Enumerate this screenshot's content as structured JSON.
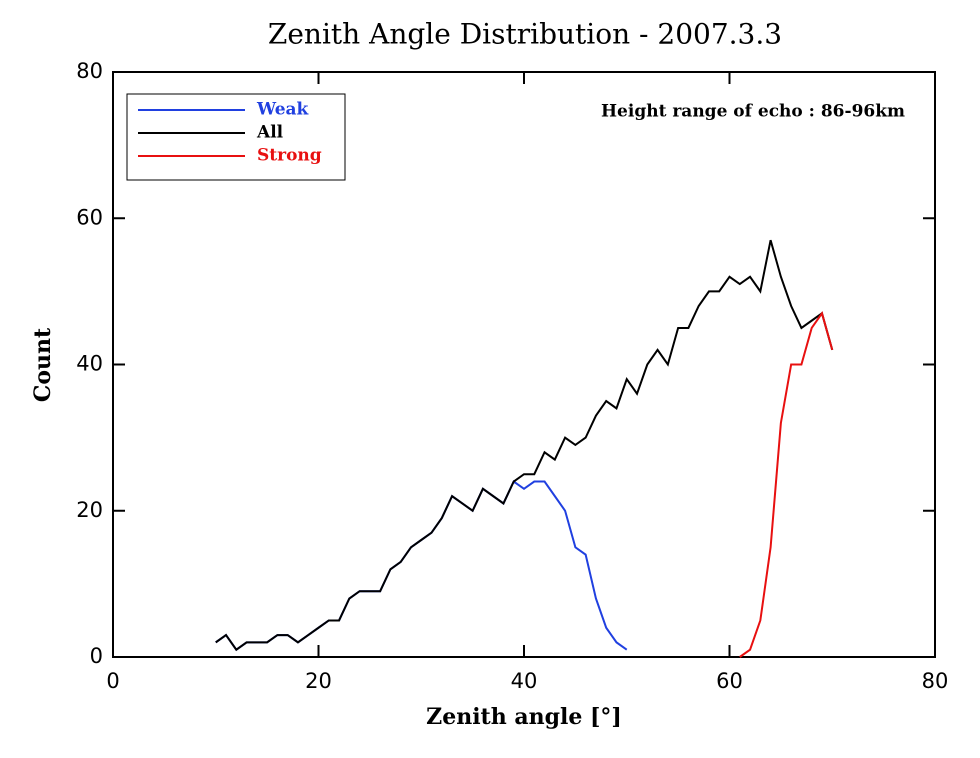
{
  "chart_data": {
    "type": "line",
    "title": "Zenith Angle Distribution - 2007.3.3",
    "annotation": "Height range of echo : 86-96km",
    "x_label": "Zenith angle [°]",
    "y_label": "Count",
    "xlim": [
      0,
      80
    ],
    "xticks": [
      0,
      20,
      40,
      60,
      80
    ],
    "ylim": [
      0,
      80
    ],
    "yticks": [
      0,
      20,
      40,
      60,
      80
    ],
    "legend": "upper left",
    "series": [
      {
        "name": "Weak",
        "color": "#2040e0",
        "x": [
          10,
          11,
          12,
          13,
          14,
          15,
          16,
          17,
          18,
          19,
          20,
          21,
          22,
          23,
          24,
          25,
          26,
          27,
          28,
          29,
          30,
          31,
          32,
          33,
          34,
          35,
          36,
          37,
          38,
          39,
          40,
          41,
          42,
          43,
          44,
          45,
          46,
          47,
          48,
          49,
          50
        ],
        "values": [
          2,
          3,
          1,
          2,
          2,
          2,
          3,
          3,
          2,
          3,
          4,
          5,
          5,
          8,
          9,
          9,
          9,
          12,
          13,
          15,
          16,
          17,
          19,
          22,
          21,
          20,
          23,
          22,
          21,
          24,
          23,
          24,
          24,
          22,
          20,
          15,
          14,
          8,
          4,
          2,
          1
        ]
      },
      {
        "name": "All",
        "color": "#000000",
        "x": [
          10,
          11,
          12,
          13,
          14,
          15,
          16,
          17,
          18,
          19,
          20,
          21,
          22,
          23,
          24,
          25,
          26,
          27,
          28,
          29,
          30,
          31,
          32,
          33,
          34,
          35,
          36,
          37,
          38,
          39,
          40,
          41,
          42,
          43,
          44,
          45,
          46,
          47,
          48,
          49,
          50,
          51,
          52,
          53,
          54,
          55,
          56,
          57,
          58,
          59,
          60,
          61,
          62,
          63,
          64,
          65,
          66,
          67,
          68,
          69,
          70
        ],
        "values": [
          2,
          3,
          1,
          2,
          2,
          2,
          3,
          3,
          2,
          3,
          4,
          5,
          5,
          8,
          9,
          9,
          9,
          12,
          13,
          15,
          16,
          17,
          19,
          22,
          21,
          20,
          23,
          22,
          21,
          24,
          25,
          25,
          28,
          27,
          30,
          29,
          30,
          33,
          35,
          34,
          38,
          36,
          40,
          42,
          40,
          45,
          45,
          48,
          50,
          50,
          52,
          51,
          52,
          50,
          57,
          52,
          48,
          45,
          46,
          47,
          42
        ]
      },
      {
        "name": "Strong",
        "color": "#e81010",
        "x": [
          61,
          62,
          63,
          64,
          65,
          66,
          67,
          68,
          69,
          70
        ],
        "values": [
          0,
          1,
          5,
          15,
          32,
          40,
          40,
          45,
          47,
          42
        ]
      }
    ]
  }
}
